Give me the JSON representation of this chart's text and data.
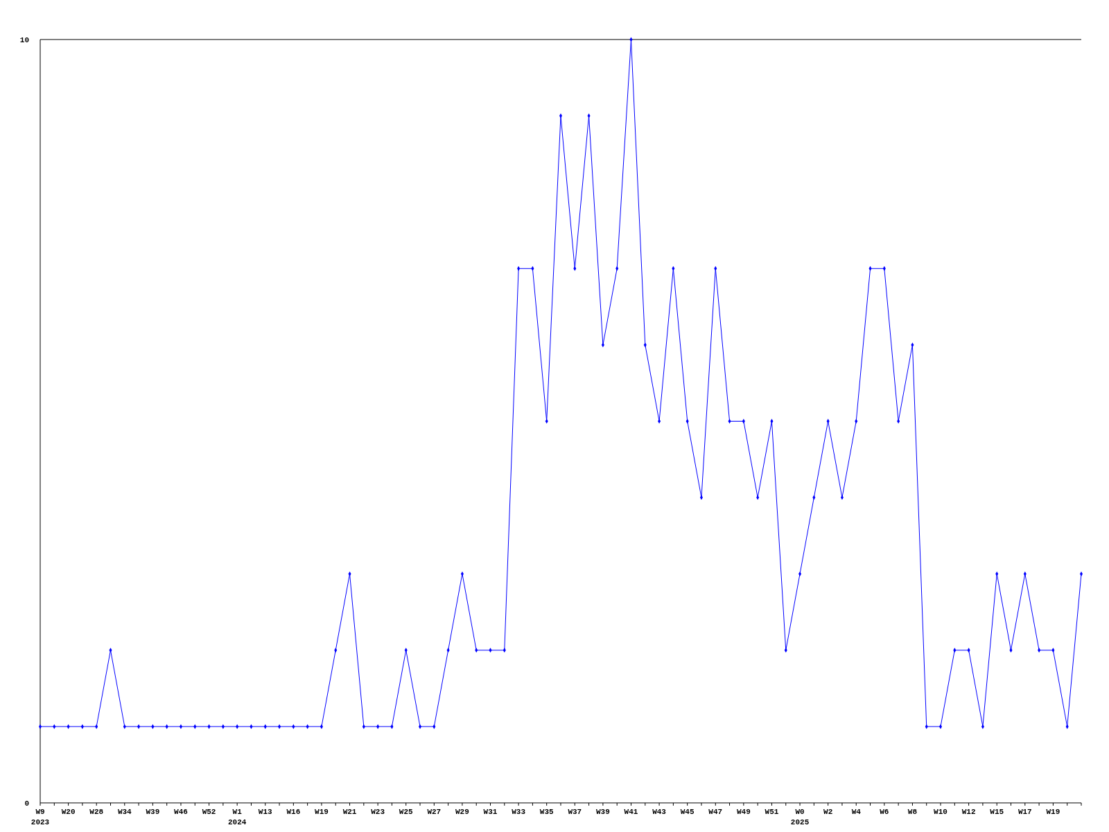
{
  "chart_data": {
    "type": "line",
    "categories": [
      "W9\n2023",
      null,
      "W20",
      null,
      "W28",
      null,
      "W34",
      null,
      "W39",
      null,
      "W46",
      null,
      "W52",
      null,
      "W1\n2024",
      null,
      "W13",
      null,
      "W16",
      null,
      "W19",
      null,
      "W21",
      null,
      "W23",
      null,
      "W25",
      null,
      "W27",
      null,
      "W29",
      null,
      "W31",
      null,
      "W33",
      null,
      "W35",
      null,
      "W37",
      null,
      "W39",
      null,
      "W41",
      null,
      "W43",
      null,
      "W45",
      null,
      "W47",
      null,
      "W49",
      null,
      "W51",
      null,
      "W0\n2025",
      null,
      "W2",
      null,
      "W4",
      null,
      "W6",
      null,
      "W8",
      null,
      "W10",
      null,
      "W12",
      null,
      "W15",
      null,
      "W17",
      null,
      "W19",
      null,
      null
    ],
    "series": [
      {
        "color": "#0000ff",
        "values": [
          1,
          1,
          1,
          1,
          1,
          2,
          1,
          1,
          1,
          1,
          1,
          1,
          1,
          1,
          1,
          1,
          1,
          1,
          1,
          1,
          1,
          2,
          3,
          1,
          1,
          1,
          2,
          1,
          1,
          2,
          3,
          2,
          2,
          2,
          7,
          7,
          5,
          9,
          7,
          9,
          6,
          7,
          10,
          6,
          5,
          7,
          5,
          4,
          7,
          5,
          5,
          4,
          5,
          2,
          3,
          4,
          5,
          4,
          5,
          7,
          7,
          5,
          6,
          1,
          1,
          2,
          2,
          1,
          3,
          2,
          3,
          2,
          2,
          1,
          3
        ]
      }
    ],
    "ylim": [
      0,
      10
    ],
    "yticks": [
      0,
      10
    ],
    "marker": "diamond",
    "line_style": "solid"
  }
}
